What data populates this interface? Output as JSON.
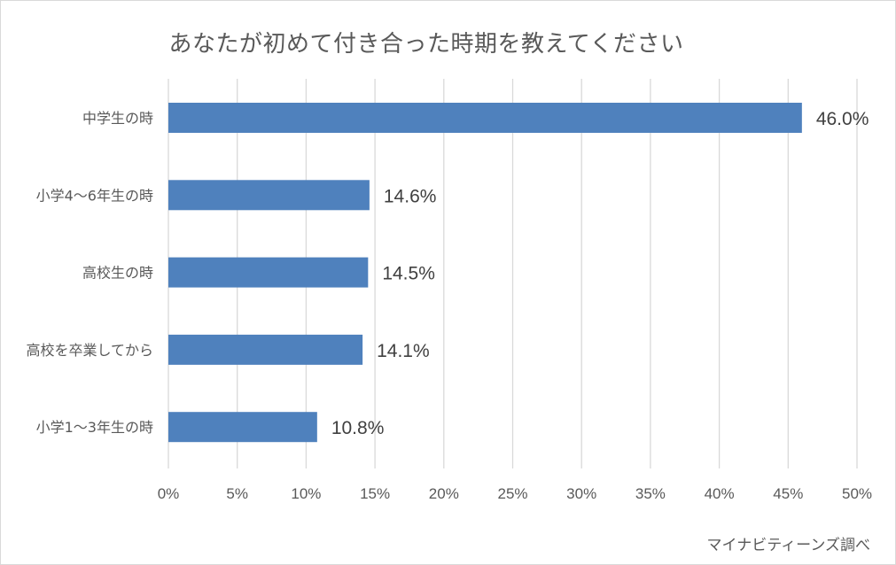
{
  "chart_data": {
    "type": "bar",
    "orientation": "horizontal",
    "title": "あなたが初めて付き合った時期を教えてください",
    "categories": [
      "中学生の時",
      "小学4〜6年生の時",
      "高校生の時",
      "高校を卒業してから",
      "小学1〜3年生の時"
    ],
    "values": [
      46.0,
      14.6,
      14.5,
      14.1,
      10.8
    ],
    "value_labels": [
      "46.0%",
      "14.6%",
      "14.5%",
      "14.1%",
      "10.8%"
    ],
    "x_ticks": [
      "0%",
      "5%",
      "10%",
      "15%",
      "20%",
      "25%",
      "30%",
      "35%",
      "40%",
      "45%",
      "50%"
    ],
    "xlim": [
      0,
      50
    ],
    "xlabel": "",
    "ylabel": "",
    "grid": "vertical",
    "legend": "none",
    "bar_color": "#4f81bd"
  },
  "source": "マイナビティーンズ調べ"
}
